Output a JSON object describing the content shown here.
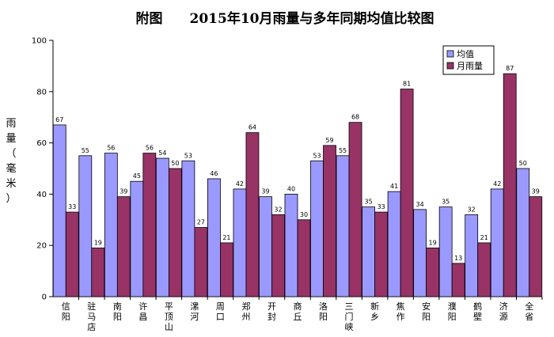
{
  "chart_data": {
    "type": "bar",
    "title": "附图　　2015年10月雨量与多年同期均值比较图",
    "ylabel": "雨量（毫米）",
    "xlabel": "",
    "ylim": [
      0,
      100
    ],
    "yticks": [
      "0",
      "20",
      "40",
      "60",
      "80",
      "100"
    ],
    "grid": false,
    "legend": "top-right",
    "categories": [
      "信阳",
      "驻马店",
      "南阳",
      "许昌",
      "平顶山",
      "漯河",
      "周口",
      "郑州",
      "开封",
      "商丘",
      "洛阳",
      "三门峡",
      "新乡",
      "焦作",
      "安阳",
      "濮阳",
      "鹤壁",
      "济源",
      "全省"
    ],
    "series": [
      {
        "name": "均值",
        "color": "#9999FF",
        "values": [
          67,
          55,
          56,
          45,
          54,
          53,
          46,
          42,
          39,
          40,
          53,
          55,
          35,
          41,
          34,
          35,
          32,
          42,
          50
        ]
      },
      {
        "name": "月雨量",
        "color": "#993366",
        "values": [
          33,
          19,
          39,
          56,
          50,
          27,
          21,
          64,
          32,
          30,
          59,
          68,
          33,
          81,
          19,
          13,
          21,
          87,
          39
        ]
      }
    ]
  }
}
